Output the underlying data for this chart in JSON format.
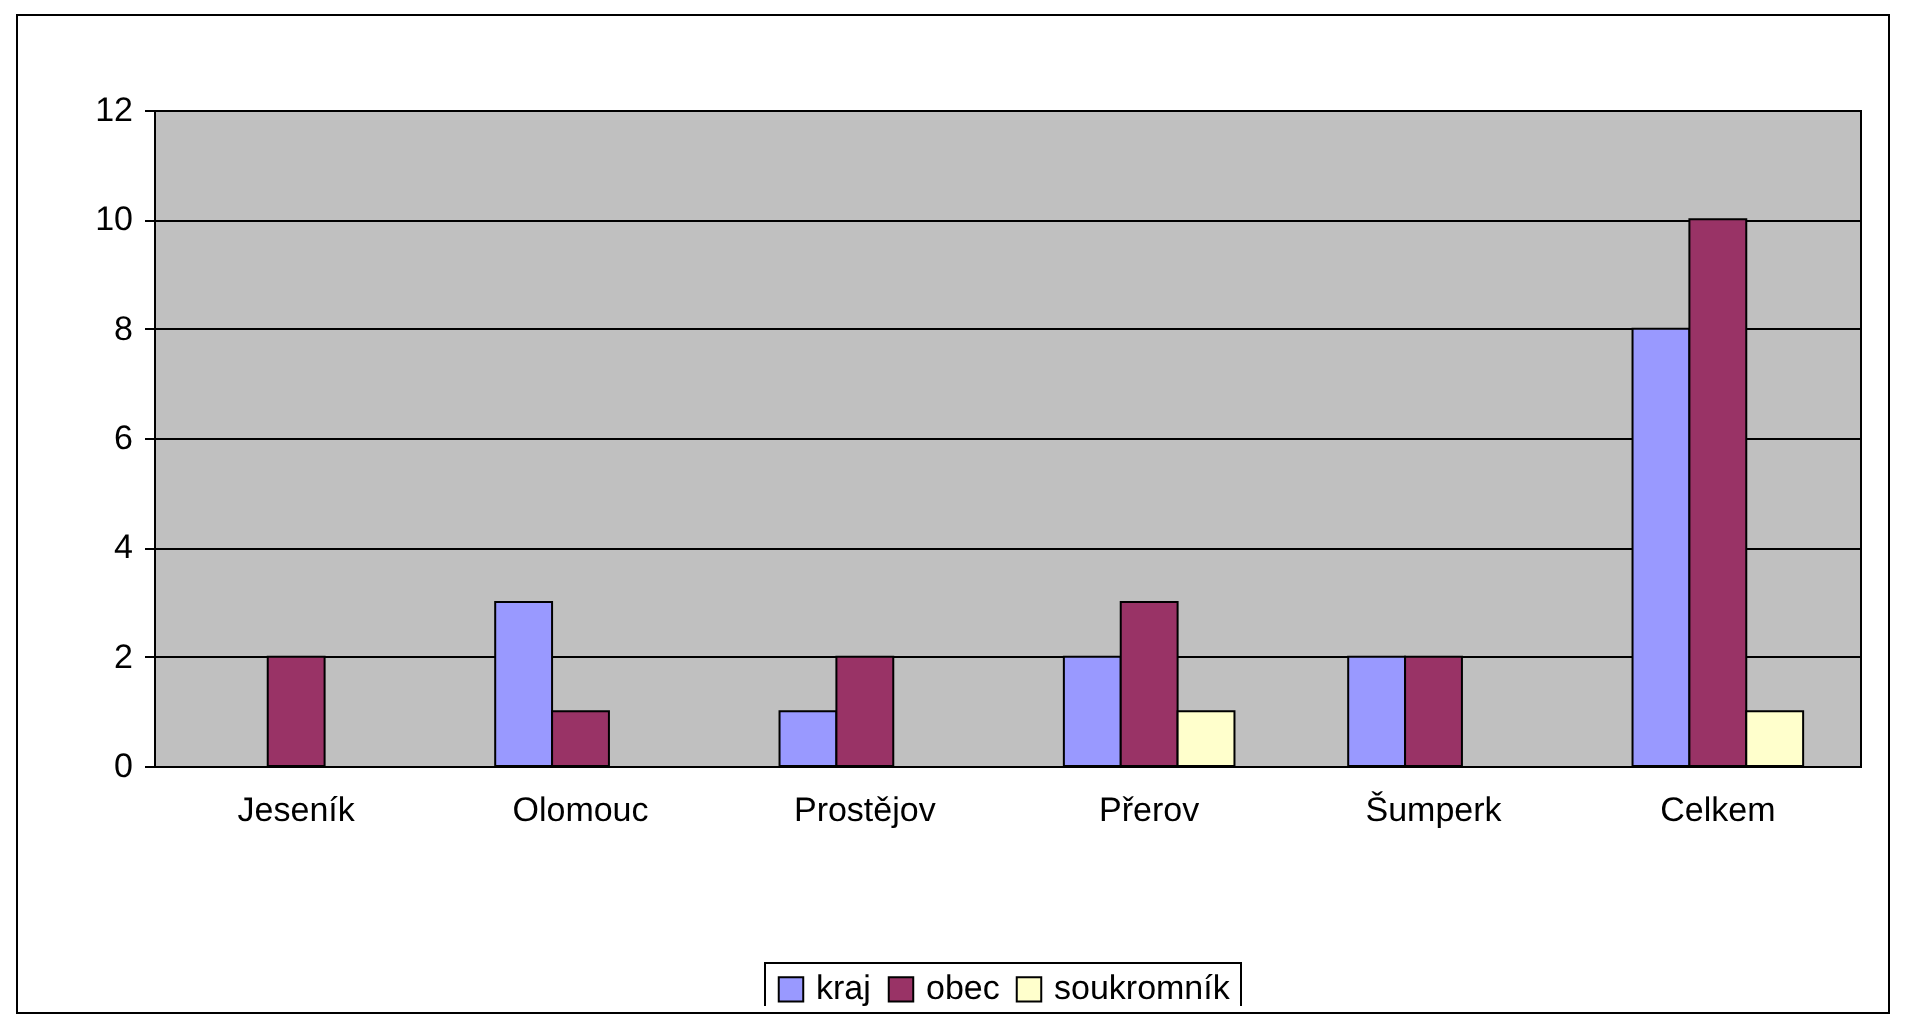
{
  "chart_data": {
    "type": "bar",
    "categories": [
      "Jeseník",
      "Olomouc",
      "Prostějov",
      "Přerov",
      "Šumperk",
      "Celkem"
    ],
    "series": [
      {
        "name": "kraj",
        "color": "#9999ff",
        "values": [
          0,
          3,
          1,
          2,
          2,
          8
        ]
      },
      {
        "name": "obec",
        "color": "#993366",
        "values": [
          2,
          1,
          2,
          3,
          2,
          10
        ]
      },
      {
        "name": "soukromník",
        "color": "#ffffcc",
        "values": [
          0,
          0,
          0,
          1,
          0,
          1
        ]
      }
    ],
    "ylim": [
      0,
      12
    ],
    "yticks": [
      0,
      2,
      4,
      6,
      8,
      10,
      12
    ],
    "grid": "y",
    "legend": "bottom"
  }
}
